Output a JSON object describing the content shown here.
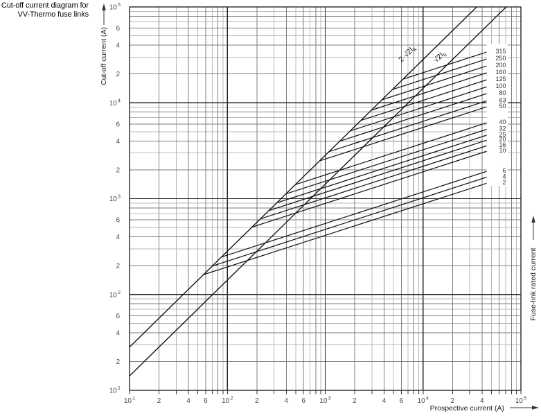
{
  "title": {
    "line1": "Cut-off current diagram for",
    "line2": "VV-Thermo fuse links"
  },
  "axes": {
    "x_label": "Prospective current (A)",
    "y_label": "Cut-off current (A)",
    "right_label": "Fuse-link rated current",
    "x_major_exponents": [
      1,
      2,
      3,
      4,
      5
    ],
    "y_major_exponents": [
      1,
      2,
      3,
      4,
      5
    ],
    "x_minor_labeled": [
      20,
      40,
      60,
      200,
      400,
      600,
      2000,
      4000,
      6000,
      20000,
      40000
    ],
    "y_minor_labeled": [
      20,
      40,
      60,
      200,
      400,
      600,
      2000,
      4000,
      6000,
      20000,
      40000,
      60000
    ]
  },
  "chart_data": {
    "type": "line",
    "title": "Cut-off current diagram for VV-Thermo fuse links",
    "xlabel": "Prospective current (A)",
    "ylabel": "Cut-off current (A)",
    "x_scale": "log",
    "y_scale": "log",
    "xlim": [
      10,
      100000
    ],
    "ylim": [
      10,
      100000
    ],
    "grid": "full log grid, major and minor lines",
    "legend_position": "right-inside",
    "reference_lines": [
      {
        "label_main": "2·√2I",
        "label_sub": "k",
        "factor": 2.828
      },
      {
        "label_main": "√2I",
        "label_sub": "k",
        "factor": 1.414
      }
    ],
    "series": [
      {
        "rating": "2",
        "points": [
          [
            57,
            161
          ],
          [
            45000,
            1450
          ]
        ]
      },
      {
        "rating": "4",
        "points": [
          [
            70,
            198
          ],
          [
            45000,
            1680
          ]
        ]
      },
      {
        "rating": "6",
        "points": [
          [
            87,
            246
          ],
          [
            45000,
            1930
          ]
        ]
      },
      {
        "rating": "10",
        "points": [
          [
            178,
            504
          ],
          [
            45000,
            3130
          ]
        ]
      },
      {
        "rating": "16",
        "points": [
          [
            217,
            615
          ],
          [
            45000,
            3570
          ]
        ]
      },
      {
        "rating": "20",
        "points": [
          [
            265,
            750
          ],
          [
            45000,
            4080
          ]
        ]
      },
      {
        "rating": "25",
        "points": [
          [
            320,
            905
          ],
          [
            45000,
            4600
          ]
        ]
      },
      {
        "rating": "32",
        "points": [
          [
            395,
            1120
          ],
          [
            45000,
            5300
          ]
        ]
      },
      {
        "rating": "40",
        "points": [
          [
            494,
            1400
          ],
          [
            45000,
            6200
          ]
        ]
      },
      {
        "rating": "50",
        "points": [
          [
            875,
            2475
          ],
          [
            45000,
            9100
          ]
        ]
      },
      {
        "rating": "63",
        "points": [
          [
            1095,
            3095
          ],
          [
            45000,
            10500
          ]
        ]
      },
      {
        "rating": "80",
        "points": [
          [
            1405,
            3975
          ],
          [
            45000,
            12500
          ]
        ]
      },
      {
        "rating": "100",
        "points": [
          [
            1800,
            5090
          ],
          [
            45000,
            14700
          ]
        ]
      },
      {
        "rating": "125",
        "points": [
          [
            2315,
            6545
          ],
          [
            45000,
            17400
          ]
        ]
      },
      {
        "rating": "160",
        "points": [
          [
            2965,
            8380
          ],
          [
            45000,
            20600
          ]
        ]
      },
      {
        "rating": "200",
        "points": [
          [
            3795,
            10730
          ],
          [
            45000,
            24300
          ]
        ]
      },
      {
        "rating": "250",
        "points": [
          [
            4860,
            13750
          ],
          [
            45000,
            28700
          ]
        ]
      },
      {
        "rating": "315",
        "points": [
          [
            6245,
            17660
          ],
          [
            45000,
            33900
          ]
        ]
      }
    ]
  },
  "colors": {
    "background": "#ffffff",
    "curve": "#141414",
    "grid_major": "#262626",
    "grid_minor_dark": "#7d7d7d",
    "grid_minor_light": "#b8b8b8",
    "tick_text": "#4a4a4a",
    "text": "#000000"
  }
}
